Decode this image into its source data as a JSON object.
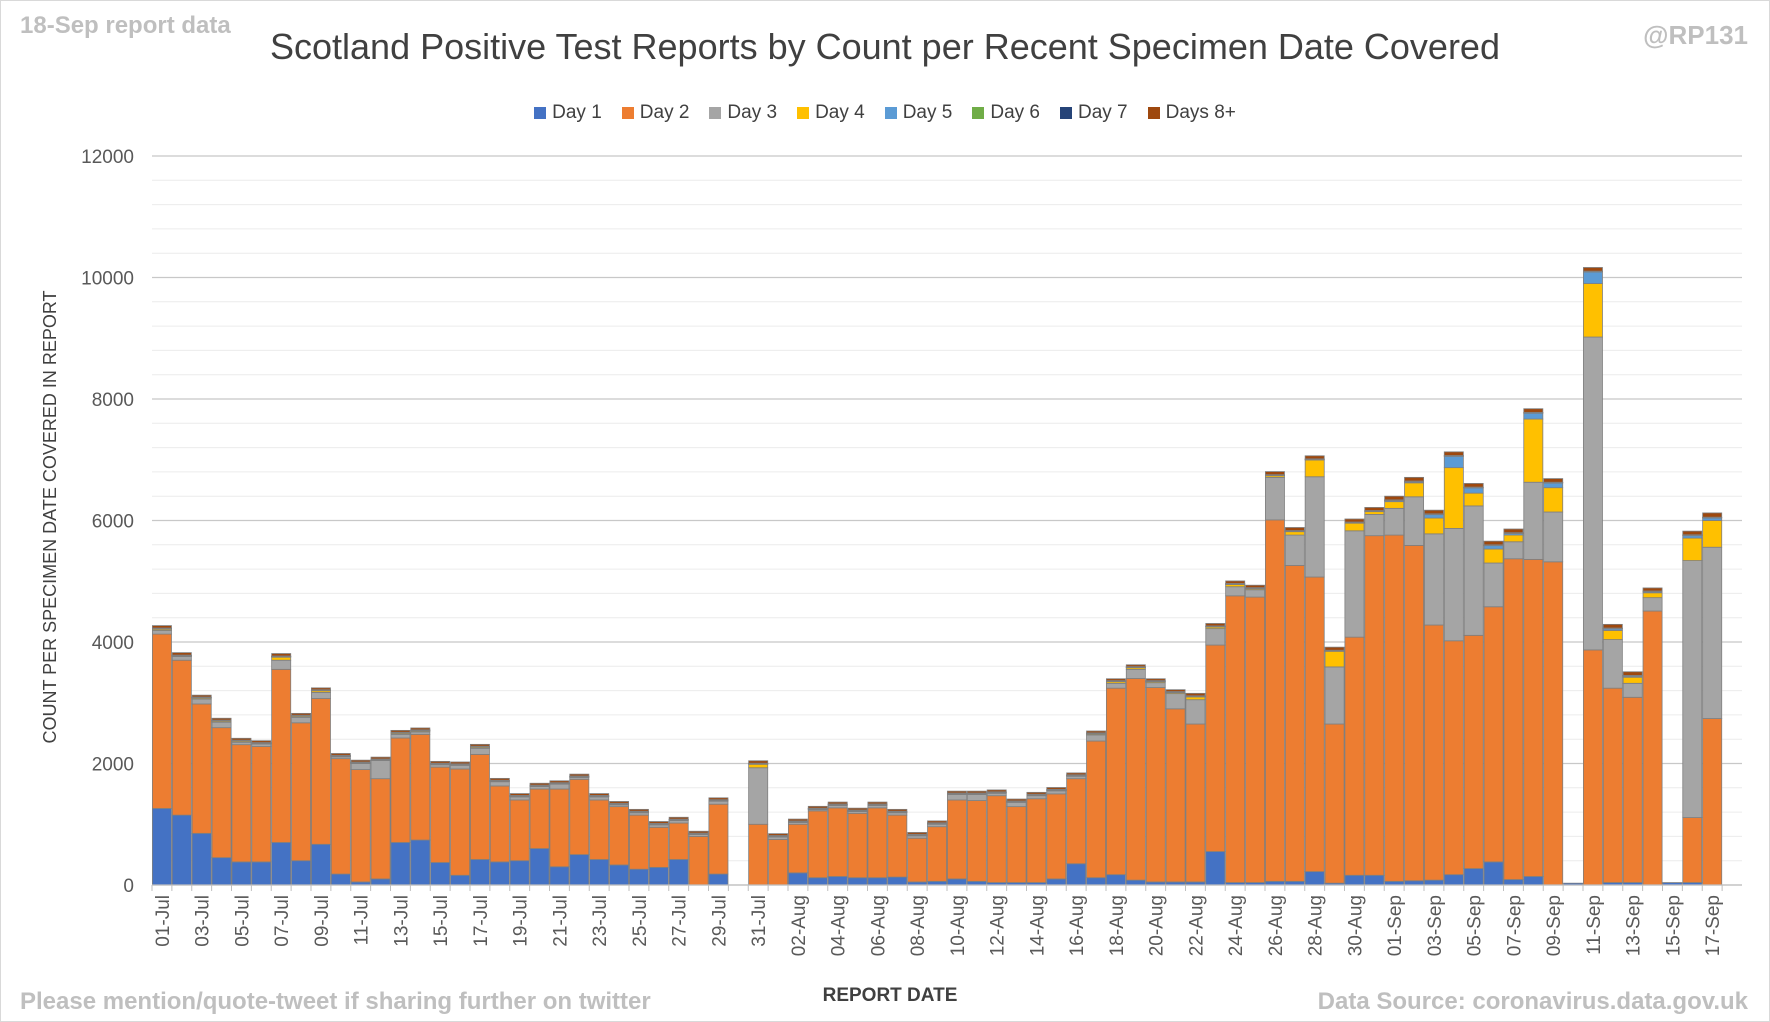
{
  "header": {
    "report_label": "18-Sep report data",
    "handle": "@RP131",
    "title": "Scotland Positive Test Reports by Count per Recent Specimen Date Covered"
  },
  "footer": {
    "mention": "Please mention/quote-tweet if sharing further on twitter",
    "source": "Data Source: coronavirus.data.gov.uk"
  },
  "colors": {
    "day1": "#4472c4",
    "day2": "#ed7d31",
    "day3": "#a5a5a5",
    "day4": "#ffc000",
    "day5": "#5b9bd5",
    "day6": "#70ad47",
    "day7": "#264478",
    "days8": "#9e480e"
  },
  "chart_data": {
    "type": "bar",
    "stacked": true,
    "title": "Scotland Positive Test Reports by Count per Recent Specimen Date Covered",
    "xlabel": "REPORT DATE",
    "ylabel": "COUNT PER SPECIMEN DATE COVERED IN REPORT",
    "ylim": [
      0,
      12000
    ],
    "yticks": [
      0,
      2000,
      4000,
      6000,
      8000,
      10000,
      12000
    ],
    "minor_grid_step": 400,
    "legend_position": "top",
    "categories": [
      "01-Jul",
      "02-Jul",
      "03-Jul",
      "04-Jul",
      "05-Jul",
      "06-Jul",
      "07-Jul",
      "08-Jul",
      "09-Jul",
      "10-Jul",
      "11-Jul",
      "12-Jul",
      "13-Jul",
      "14-Jul",
      "15-Jul",
      "16-Jul",
      "17-Jul",
      "18-Jul",
      "19-Jul",
      "20-Jul",
      "21-Jul",
      "22-Jul",
      "23-Jul",
      "24-Jul",
      "25-Jul",
      "26-Jul",
      "27-Jul",
      "28-Jul",
      "29-Jul",
      "30-Jul",
      "31-Jul",
      "01-Aug",
      "02-Aug",
      "03-Aug",
      "04-Aug",
      "05-Aug",
      "06-Aug",
      "07-Aug",
      "08-Aug",
      "09-Aug",
      "10-Aug",
      "11-Aug",
      "12-Aug",
      "13-Aug",
      "14-Aug",
      "15-Aug",
      "16-Aug",
      "17-Aug",
      "18-Aug",
      "19-Aug",
      "20-Aug",
      "21-Aug",
      "22-Aug",
      "23-Aug",
      "24-Aug",
      "25-Aug",
      "26-Aug",
      "27-Aug",
      "28-Aug",
      "29-Aug",
      "30-Aug",
      "31-Aug",
      "01-Sep",
      "02-Sep",
      "03-Sep",
      "04-Sep",
      "05-Sep",
      "06-Sep",
      "07-Sep",
      "08-Sep",
      "09-Sep",
      "10-Sep",
      "11-Sep",
      "12-Sep",
      "13-Sep",
      "14-Sep",
      "15-Sep",
      "16-Sep",
      "17-Sep",
      "18-Sep"
    ],
    "x_tick_labels": [
      "01-Jul",
      "03-Jul",
      "05-Jul",
      "07-Jul",
      "09-Jul",
      "11-Jul",
      "13-Jul",
      "15-Jul",
      "17-Jul",
      "19-Jul",
      "21-Jul",
      "23-Jul",
      "25-Jul",
      "27-Jul",
      "29-Jul",
      "31-Jul",
      "02-Aug",
      "04-Aug",
      "06-Aug",
      "08-Aug",
      "10-Aug",
      "12-Aug",
      "14-Aug",
      "16-Aug",
      "18-Aug",
      "20-Aug",
      "22-Aug",
      "24-Aug",
      "26-Aug",
      "28-Aug",
      "30-Aug",
      "01-Sep",
      "03-Sep",
      "05-Sep",
      "07-Sep",
      "09-Sep",
      "11-Sep",
      "13-Sep",
      "15-Sep",
      "17-Sep"
    ],
    "series": [
      {
        "name": "Day 1",
        "color": "#4472c4",
        "values": [
          1260,
          1150,
          850,
          450,
          380,
          380,
          700,
          400,
          670,
          180,
          50,
          100,
          700,
          740,
          370,
          160,
          420,
          380,
          400,
          600,
          300,
          500,
          420,
          330,
          260,
          290,
          420,
          0,
          180,
          0,
          0,
          0,
          200,
          120,
          140,
          120,
          120,
          130,
          50,
          60,
          100,
          60,
          40,
          40,
          40,
          100,
          350,
          120,
          170,
          80,
          50,
          50,
          50,
          550,
          40,
          40,
          60,
          60,
          220,
          30,
          160,
          160,
          60,
          70,
          80,
          170,
          270,
          380,
          90,
          140,
          0,
          30,
          0,
          40,
          40,
          0,
          40,
          40,
          0,
          0
        ]
      },
      {
        "name": "Day 2",
        "color": "#ed7d31",
        "values": [
          2870,
          2550,
          2130,
          2140,
          1930,
          1900,
          2850,
          2270,
          2400,
          1900,
          1850,
          1650,
          1720,
          1740,
          1570,
          1750,
          1730,
          1250,
          1000,
          980,
          1280,
          1240,
          980,
          960,
          890,
          660,
          600,
          800,
          1150,
          0,
          1000,
          750,
          800,
          1100,
          1130,
          1060,
          1150,
          1020,
          720,
          900,
          1300,
          1330,
          1430,
          1250,
          1380,
          1400,
          1400,
          2250,
          3070,
          3320,
          3200,
          2850,
          2600,
          3400,
          4720,
          4700,
          5950,
          5200,
          4850,
          2620,
          3920,
          5590,
          5700,
          5520,
          4200,
          3850,
          3840,
          4200,
          5280,
          5220,
          5320,
          0,
          3870,
          3200,
          3050,
          4510,
          0,
          1070,
          2740,
          0
        ]
      },
      {
        "name": "Day 3",
        "color": "#a5a5a5",
        "values": [
          60,
          60,
          80,
          90,
          40,
          40,
          150,
          90,
          100,
          30,
          100,
          300,
          60,
          40,
          40,
          60,
          100,
          70,
          50,
          40,
          80,
          30,
          50,
          30,
          40,
          40,
          40,
          30,
          50,
          0,
          930,
          40,
          30,
          20,
          40,
          30,
          40,
          40,
          40,
          40,
          90,
          100,
          40,
          70,
          50,
          50,
          40,
          100,
          80,
          150,
          80,
          250,
          400,
          270,
          150,
          120,
          700,
          500,
          1650,
          940,
          1750,
          350,
          440,
          800,
          1500,
          1850,
          2130,
          720,
          280,
          1270,
          820,
          0,
          5150,
          800,
          230,
          220,
          0,
          4230,
          2820,
          0
        ]
      },
      {
        "name": "Day 4",
        "color": "#ffc000",
        "values": [
          20,
          10,
          20,
          20,
          20,
          10,
          50,
          20,
          30,
          10,
          10,
          10,
          20,
          20,
          10,
          10,
          20,
          10,
          10,
          10,
          10,
          10,
          10,
          10,
          10,
          10,
          10,
          10,
          10,
          0,
          60,
          10,
          10,
          10,
          10,
          10,
          10,
          10,
          10,
          10,
          10,
          10,
          10,
          10,
          10,
          10,
          10,
          20,
          30,
          30,
          20,
          20,
          50,
          30,
          40,
          20,
          30,
          60,
          280,
          260,
          130,
          50,
          110,
          230,
          260,
          1000,
          210,
          230,
          110,
          1040,
          400,
          0,
          880,
          150,
          100,
          80,
          0,
          370,
          440,
          0
        ]
      },
      {
        "name": "Day 5",
        "color": "#5b9bd5",
        "values": [
          10,
          5,
          5,
          5,
          5,
          5,
          10,
          5,
          5,
          5,
          5,
          5,
          5,
          5,
          5,
          5,
          5,
          5,
          5,
          5,
          5,
          5,
          5,
          5,
          5,
          5,
          5,
          5,
          5,
          0,
          5,
          5,
          5,
          5,
          5,
          5,
          5,
          5,
          5,
          5,
          5,
          5,
          5,
          5,
          5,
          5,
          5,
          5,
          5,
          5,
          5,
          5,
          5,
          5,
          5,
          5,
          5,
          5,
          5,
          5,
          5,
          5,
          20,
          20,
          60,
          190,
          90,
          60,
          30,
          100,
          80,
          0,
          190,
          30,
          20,
          20,
          0,
          40,
          40,
          0
        ]
      },
      {
        "name": "Day 6",
        "color": "#70ad47",
        "values": [
          5,
          5,
          5,
          5,
          5,
          5,
          5,
          5,
          5,
          5,
          5,
          5,
          5,
          5,
          5,
          5,
          5,
          5,
          5,
          5,
          5,
          5,
          5,
          5,
          5,
          5,
          5,
          5,
          5,
          0,
          5,
          5,
          5,
          5,
          5,
          5,
          5,
          5,
          5,
          5,
          5,
          5,
          5,
          5,
          5,
          5,
          5,
          5,
          5,
          5,
          5,
          5,
          5,
          5,
          5,
          5,
          5,
          5,
          5,
          5,
          5,
          5,
          5,
          5,
          5,
          5,
          5,
          5,
          5,
          5,
          5,
          0,
          10,
          5,
          5,
          5,
          0,
          10,
          10,
          0
        ]
      },
      {
        "name": "Day 7",
        "color": "#264478",
        "values": [
          5,
          5,
          5,
          5,
          5,
          5,
          5,
          5,
          5,
          5,
          5,
          5,
          5,
          5,
          5,
          5,
          5,
          5,
          5,
          5,
          5,
          5,
          5,
          5,
          5,
          5,
          5,
          5,
          5,
          0,
          5,
          5,
          5,
          5,
          5,
          5,
          5,
          5,
          5,
          5,
          5,
          5,
          5,
          5,
          5,
          5,
          5,
          5,
          5,
          5,
          5,
          5,
          5,
          5,
          5,
          5,
          5,
          5,
          5,
          5,
          5,
          5,
          5,
          5,
          5,
          5,
          5,
          5,
          5,
          5,
          5,
          0,
          5,
          5,
          5,
          5,
          0,
          5,
          5,
          0
        ]
      },
      {
        "name": "Days 8+",
        "color": "#9e480e",
        "values": [
          40,
          40,
          30,
          30,
          30,
          30,
          40,
          30,
          30,
          30,
          30,
          30,
          30,
          30,
          30,
          30,
          30,
          30,
          30,
          30,
          30,
          30,
          30,
          30,
          30,
          30,
          30,
          30,
          30,
          0,
          40,
          30,
          30,
          30,
          30,
          30,
          30,
          30,
          30,
          30,
          30,
          30,
          30,
          30,
          30,
          30,
          30,
          30,
          30,
          30,
          30,
          30,
          40,
          40,
          40,
          40,
          50,
          50,
          50,
          50,
          50,
          50,
          60,
          60,
          60,
          60,
          60,
          60,
          60,
          60,
          60,
          0,
          60,
          60,
          60,
          50,
          0,
          60,
          70,
          0
        ]
      }
    ]
  }
}
